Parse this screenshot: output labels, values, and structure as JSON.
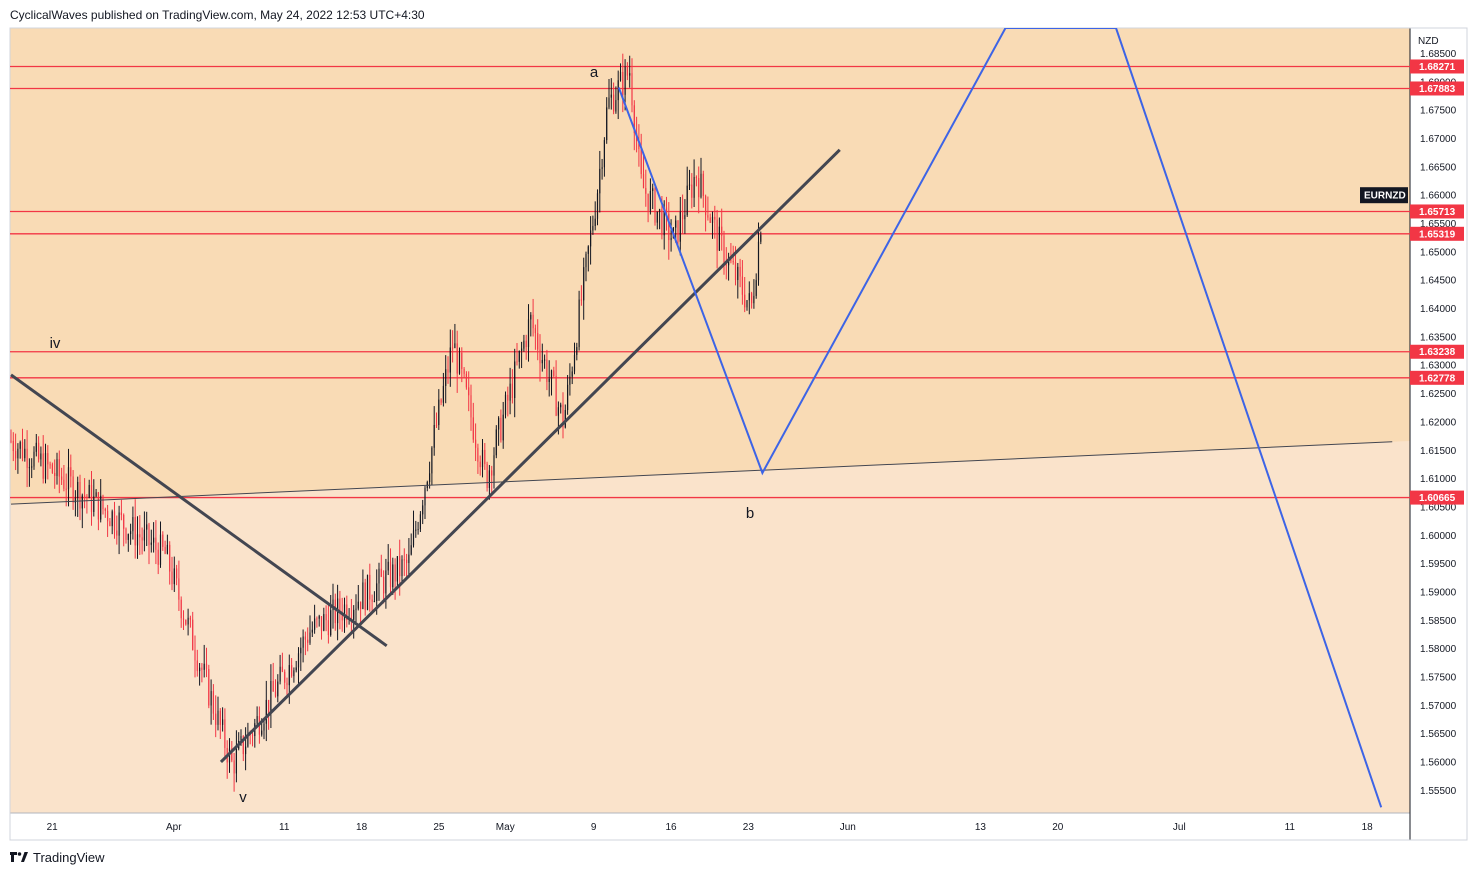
{
  "header": {
    "published": "CyclicalWaves published on TradingView.com, May 24, 2022 12:53 UTC+4:30"
  },
  "footer": {
    "brand": "TradingView"
  },
  "colors": {
    "zone_upper": "#f9dbb5",
    "zone_lower": "#fae3cb",
    "level_line": "#f23645",
    "projection": "#3d64e6",
    "trendline": "#434651",
    "candle_up": "#131722",
    "candle_down": "#f23645"
  },
  "chart_data": {
    "type": "candlestick",
    "symbol": "EURNZD",
    "currency": "NZD",
    "ylim": [
      1.551,
      1.6895
    ],
    "y_ticks": [
      "1.68500",
      "1.68000",
      "1.67500",
      "1.67000",
      "1.66500",
      "1.66000",
      "1.65500",
      "1.65000",
      "1.64500",
      "1.64000",
      "1.63500",
      "1.63000",
      "1.62500",
      "1.62000",
      "1.61500",
      "1.61000",
      "1.60500",
      "1.60000",
      "1.59500",
      "1.59000",
      "1.58500",
      "1.58000",
      "1.57500",
      "1.57000",
      "1.56500",
      "1.56000",
      "1.55500"
    ],
    "x_ticks": [
      "21",
      "Apr",
      "11",
      "18",
      "25",
      "May",
      "9",
      "16",
      "23",
      "Jun",
      "13",
      "20",
      "Jul",
      "11",
      "18"
    ],
    "horizontal_levels": [
      1.68271,
      1.67883,
      1.65713,
      1.65319,
      1.63238,
      1.62778,
      1.60665
    ],
    "level_labels": [
      "1.68271",
      "1.67883",
      "1.65713",
      "1.65319",
      "1.63238",
      "1.62778",
      "1.60665"
    ],
    "symbol_tag": "EURNZD",
    "wave_labels": [
      "a",
      "b",
      "iv",
      "v"
    ],
    "anchors": [
      {
        "date": "Mar 17",
        "price": 1.6167
      },
      {
        "date": "Mar 31",
        "price": 1.5965
      },
      {
        "date": "Apr 6",
        "price": 1.5595
      },
      {
        "date": "Apr 13",
        "price": 1.583
      },
      {
        "date": "Apr 22",
        "price": 1.595
      },
      {
        "date": "Apr 26",
        "price": 1.634
      },
      {
        "date": "Apr 29",
        "price": 1.61
      },
      {
        "date": "May 3",
        "price": 1.638
      },
      {
        "date": "May 6",
        "price": 1.62
      },
      {
        "date": "May 9",
        "price": 1.66
      },
      {
        "date": "May 10",
        "price": 1.676
      },
      {
        "date": "May 12",
        "price": 1.682
      },
      {
        "date": "May 13",
        "price": 1.662
      },
      {
        "date": "May 16",
        "price": 1.652
      },
      {
        "date": "May 18",
        "price": 1.664
      },
      {
        "date": "May 20",
        "price": 1.652
      },
      {
        "date": "May 23",
        "price": 1.64
      },
      {
        "date": "May 24",
        "price": 1.658
      }
    ],
    "trendlines": [
      {
        "from": {
          "date": "Mar 17",
          "price": 1.6283
        },
        "to": {
          "date": "Apr 20",
          "price": 1.5805
        }
      },
      {
        "from": {
          "date": "Apr 5",
          "price": 1.56
        },
        "to": {
          "date": "May 31",
          "price": 1.668
        }
      },
      {
        "from": {
          "date": "Mar 17",
          "price": 1.6055
        },
        "to": {
          "date": "Jul 20",
          "price": 1.6165
        }
      }
    ],
    "projection": [
      {
        "date": "May 11",
        "price": 1.679
      },
      {
        "date": "May 24",
        "price": 1.611
      },
      {
        "date": "Jun 15",
        "price": 1.6895
      },
      {
        "date": "Jun 25",
        "price": 1.6895
      },
      {
        "date": "Jul 19",
        "price": 1.552
      }
    ]
  }
}
